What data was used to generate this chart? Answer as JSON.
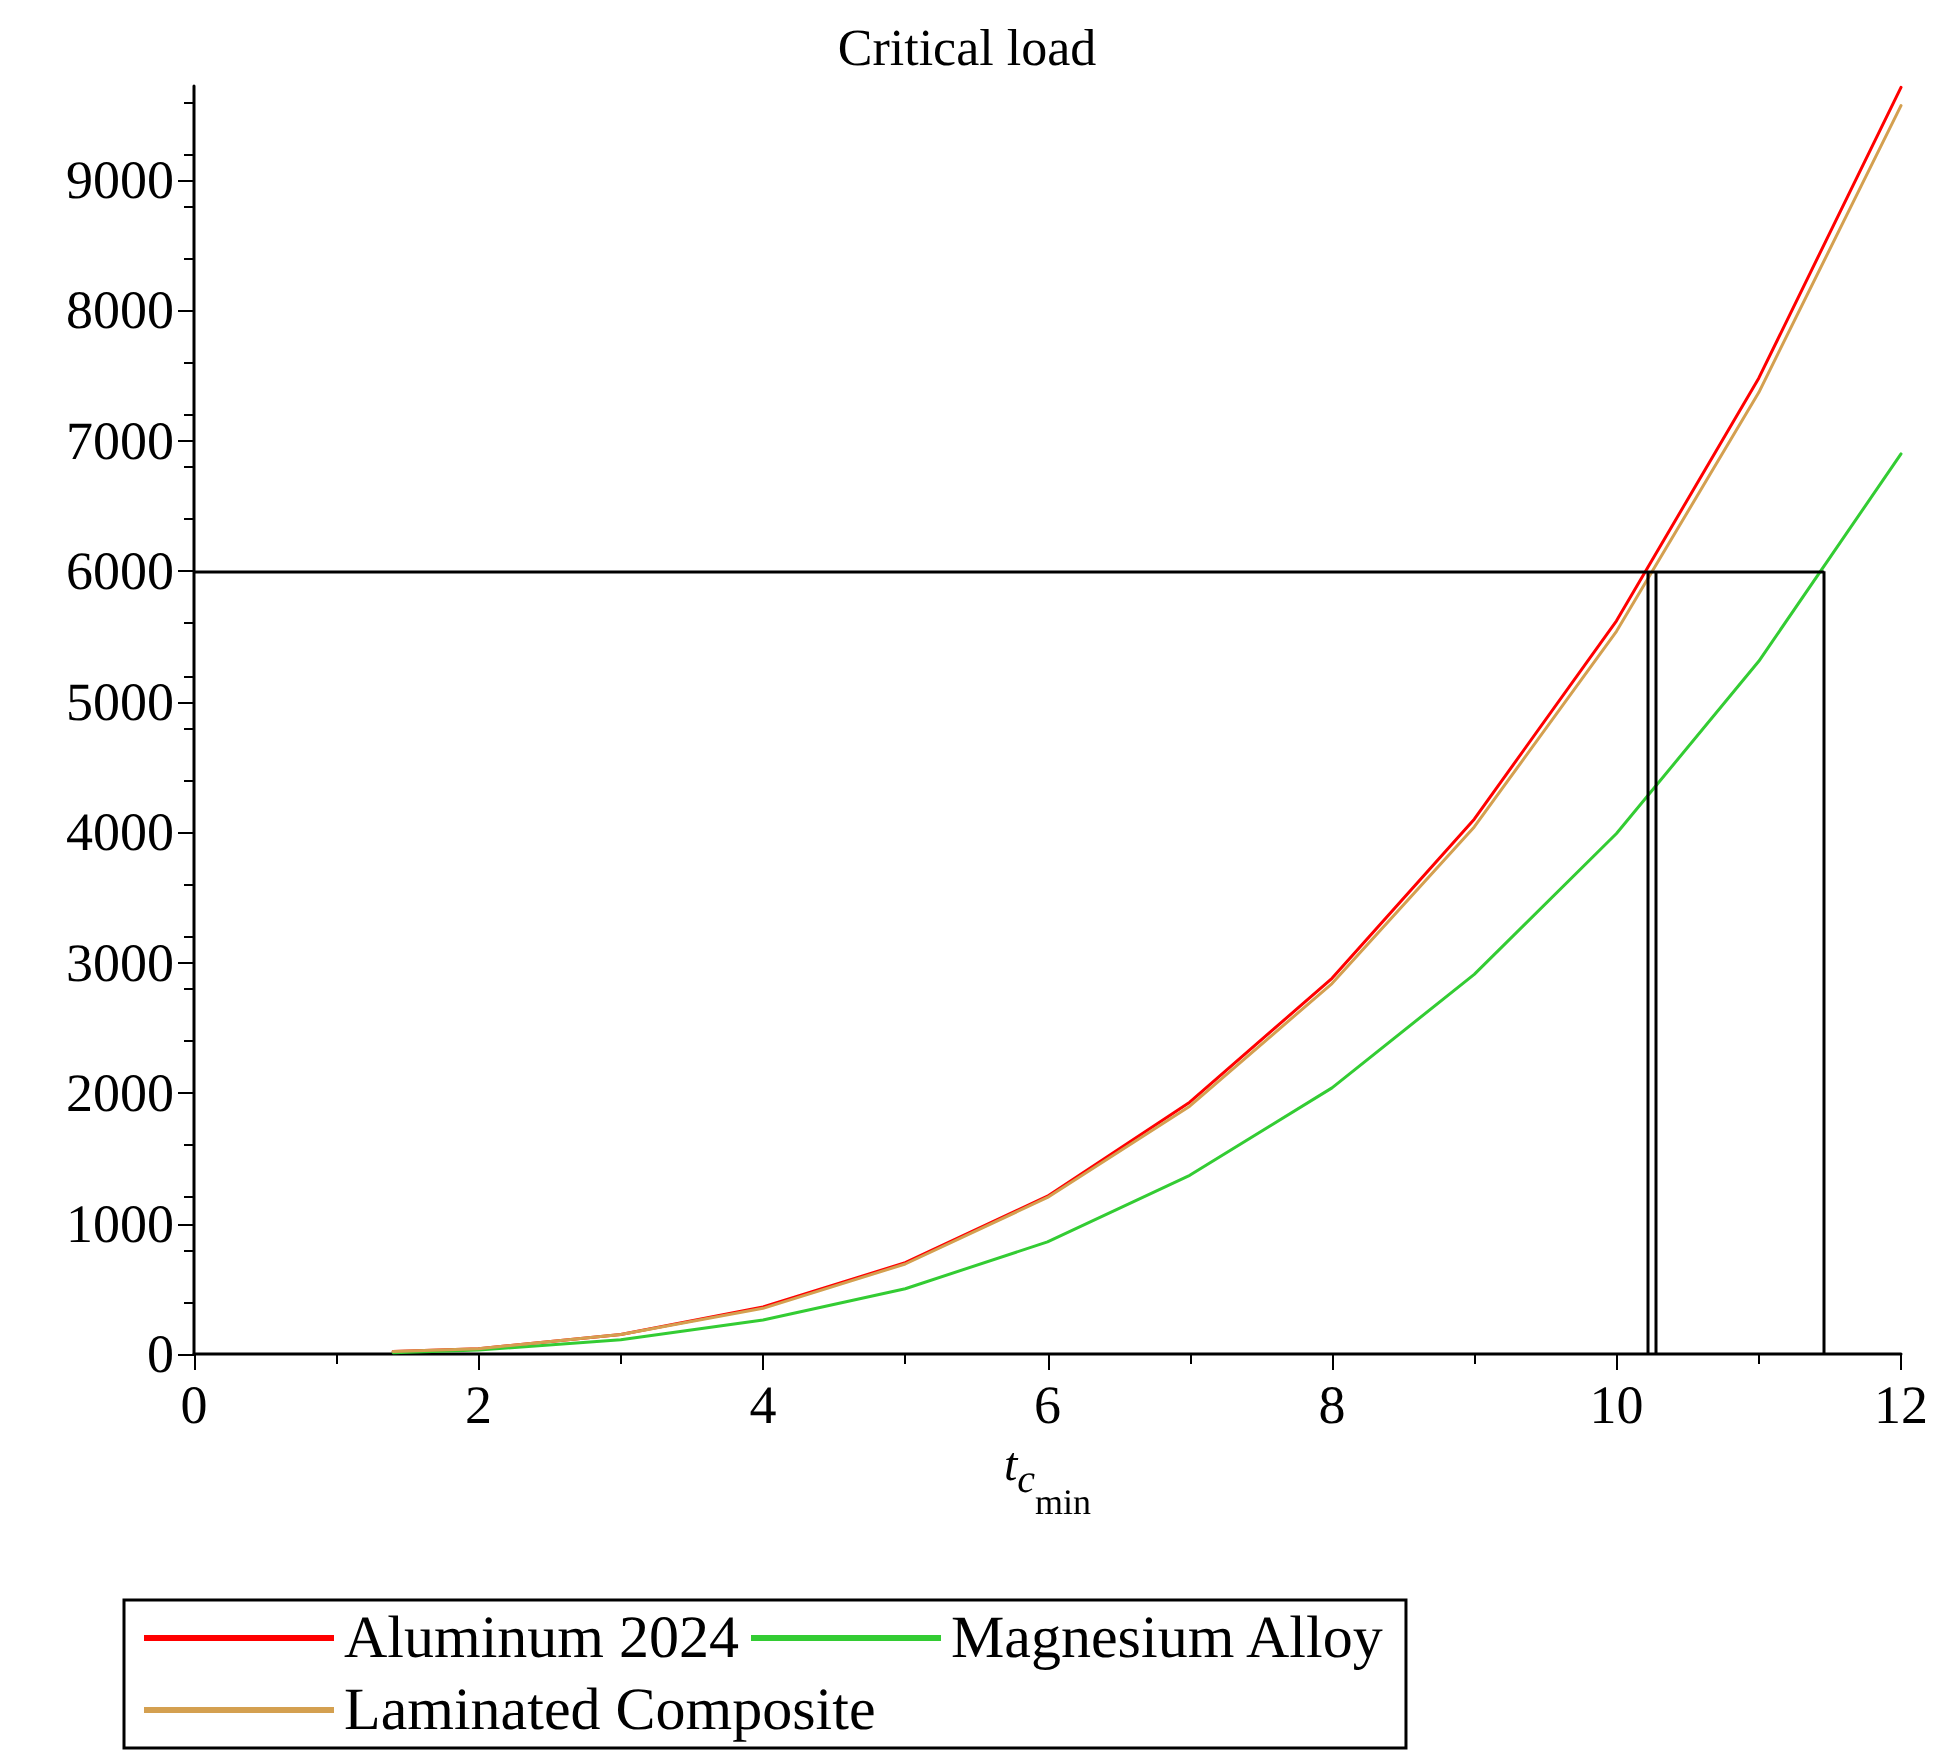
{
  "chart_data": {
    "type": "line",
    "title": "Critical load",
    "xlabel": "t$_{c}$$_{min}$",
    "x": [
      1.4,
      2,
      3,
      4,
      5,
      6,
      7,
      8,
      9,
      10,
      11,
      12
    ],
    "series": [
      {
        "name": "Aluminum 2024",
        "color": "#ff0000",
        "values": [
          20,
          40,
          150,
          360,
          700,
          1210,
          1930,
          2880,
          4100,
          5620,
          7480,
          9710
        ]
      },
      {
        "name": "Magnesium Alloy",
        "color": "#33cc33",
        "values": [
          10,
          30,
          110,
          260,
          500,
          860,
          1370,
          2040,
          2910,
          3990,
          5310,
          6900
        ]
      },
      {
        "name": "Laminated Composite",
        "color": "#d4a050",
        "values": [
          20,
          40,
          150,
          350,
          690,
          1200,
          1900,
          2840,
          4040,
          5540,
          7370,
          9570
        ]
      }
    ],
    "xlim": [
      0,
      12
    ],
    "xticks": [
      0,
      2,
      4,
      6,
      8,
      10,
      12
    ],
    "ylim": [
      0,
      9720
    ],
    "yticks": [
      0,
      1000,
      2000,
      3000,
      4000,
      5000,
      6000,
      7000,
      8000,
      9000
    ],
    "ref_lines": [
      {
        "axis": "y",
        "value": 6000,
        "color": "#000000"
      },
      {
        "axis": "x",
        "value": 10.22,
        "color": "#000000"
      },
      {
        "axis": "x",
        "value": 10.27,
        "color": "#000000"
      },
      {
        "axis": "x",
        "value": 11.46,
        "color": "#000000"
      }
    ],
    "grid": false,
    "legend": "bottom",
    "marker": "none",
    "line_style": "solid"
  }
}
